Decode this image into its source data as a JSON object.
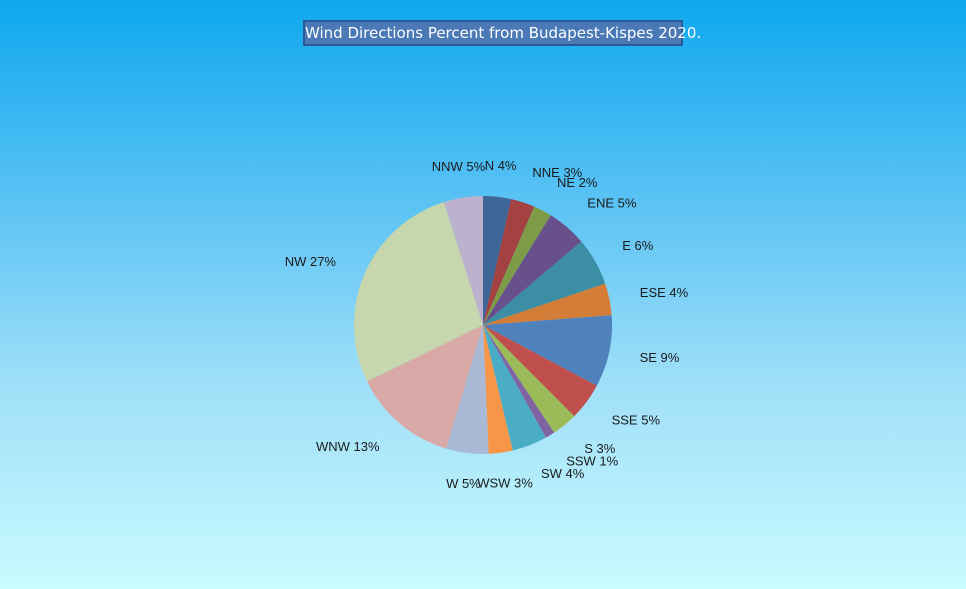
{
  "chart_data": {
    "type": "pie",
    "title": "Wind Directions Percent from Budapest-Kispes 2020.",
    "slices": [
      {
        "label": "N 4%",
        "value": 3.5,
        "color": "#3e6698"
      },
      {
        "label": "NNE 3%",
        "value": 3.0,
        "color": "#a34241"
      },
      {
        "label": "NE 2%",
        "value": 2.3,
        "color": "#7e9b47"
      },
      {
        "label": "ENE 5%",
        "value": 5.0,
        "color": "#68518a"
      },
      {
        "label": "E 6%",
        "value": 6.0,
        "color": "#3b8ea3"
      },
      {
        "label": "ESE 4%",
        "value": 4.0,
        "color": "#d47d38"
      },
      {
        "label": "SE 9%",
        "value": 9.0,
        "color": "#4f81bd"
      },
      {
        "label": "SSE 5%",
        "value": 4.7,
        "color": "#c0504d"
      },
      {
        "label": "S 3%",
        "value": 3.2,
        "color": "#9bbb59"
      },
      {
        "label": "SSW 1%",
        "value": 1.2,
        "color": "#8064a2"
      },
      {
        "label": "SW 4%",
        "value": 4.4,
        "color": "#4bacc6"
      },
      {
        "label": "WSW 3%",
        "value": 3.0,
        "color": "#f79646"
      },
      {
        "label": "W 5%",
        "value": 5.3,
        "color": "#aab9d6"
      },
      {
        "label": "WNW 13%",
        "value": 13.2,
        "color": "#d9a9a8"
      },
      {
        "label": "NW 27%",
        "value": 27.3,
        "color": "#c6d7ad"
      },
      {
        "label": "NNW 5%",
        "value": 4.9,
        "color": "#bdb2ce"
      }
    ]
  }
}
